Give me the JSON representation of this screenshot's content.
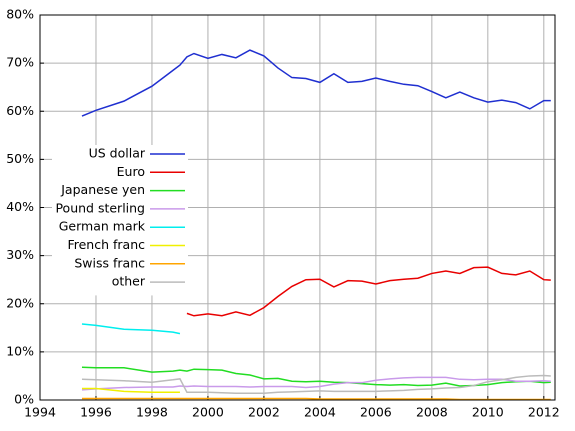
{
  "chart_data": {
    "type": "line",
    "x": [
      1995.5,
      1996,
      1997,
      1998,
      1998.75,
      1999,
      1999.25,
      1999.5,
      2000,
      2000.5,
      2001,
      2001.5,
      2002,
      2002.5,
      2003,
      2003.5,
      2004,
      2004.5,
      2005,
      2005.5,
      2006,
      2006.5,
      2007,
      2007.5,
      2008,
      2008.5,
      2009,
      2009.5,
      2010,
      2010.5,
      2011,
      2011.5,
      2012,
      2012.25
    ],
    "series": [
      {
        "name": "US dollar",
        "color": "#1f2fd0",
        "values": [
          59.0,
          60.2,
          62.1,
          65.2,
          68.5,
          69.6,
          71.3,
          72.0,
          71.0,
          71.8,
          71.1,
          72.7,
          71.5,
          69.0,
          67.0,
          66.8,
          66.0,
          67.8,
          66.0,
          66.2,
          66.9,
          66.2,
          65.6,
          65.3,
          64.1,
          62.8,
          64.0,
          62.8,
          61.9,
          62.3,
          61.8,
          60.5,
          62.2,
          62.2
        ]
      },
      {
        "name": "Euro",
        "color": "#e80000",
        "values": [
          null,
          null,
          null,
          null,
          null,
          null,
          18.0,
          17.5,
          17.9,
          17.5,
          18.3,
          17.6,
          19.2,
          21.5,
          23.6,
          25.0,
          25.1,
          23.5,
          24.8,
          24.7,
          24.1,
          24.8,
          25.1,
          25.3,
          26.3,
          26.8,
          26.3,
          27.5,
          27.6,
          26.3,
          26.0,
          26.8,
          25.0,
          24.9
        ]
      },
      {
        "name": "Japanese yen",
        "color": "#22dd22",
        "values": [
          6.8,
          6.7,
          6.7,
          5.8,
          6.0,
          6.2,
          6.0,
          6.4,
          6.3,
          6.2,
          5.5,
          5.2,
          4.4,
          4.5,
          3.9,
          3.8,
          3.9,
          3.7,
          3.6,
          3.4,
          3.2,
          3.1,
          3.2,
          3.0,
          3.1,
          3.5,
          2.9,
          3.0,
          3.2,
          3.6,
          3.8,
          3.9,
          3.6,
          3.7
        ]
      },
      {
        "name": "Pound sterling",
        "color": "#c99aea",
        "values": [
          2.1,
          2.3,
          2.6,
          2.7,
          2.7,
          2.9,
          2.8,
          2.9,
          2.8,
          2.8,
          2.8,
          2.7,
          2.8,
          2.8,
          2.8,
          2.6,
          2.8,
          3.3,
          3.6,
          3.6,
          4.1,
          4.4,
          4.6,
          4.7,
          4.7,
          4.7,
          4.3,
          4.2,
          4.3,
          4.3,
          3.9,
          3.9,
          4.0,
          3.9
        ]
      },
      {
        "name": "German mark",
        "color": "#00eeee",
        "values": [
          15.8,
          15.5,
          14.7,
          14.5,
          14.1,
          13.8,
          null,
          null,
          null,
          null,
          null,
          null,
          null,
          null,
          null,
          null,
          null,
          null,
          null,
          null,
          null,
          null,
          null,
          null,
          null,
          null,
          null,
          null,
          null,
          null,
          null,
          null,
          null,
          null
        ]
      },
      {
        "name": "French franc",
        "color": "#f0f000",
        "values": [
          2.4,
          2.4,
          1.8,
          1.6,
          1.6,
          1.6,
          null,
          null,
          null,
          null,
          null,
          null,
          null,
          null,
          null,
          null,
          null,
          null,
          null,
          null,
          null,
          null,
          null,
          null,
          null,
          null,
          null,
          null,
          null,
          null,
          null,
          null,
          null,
          null
        ]
      },
      {
        "name": "Swiss franc",
        "color": "#ffa500",
        "values": [
          0.3,
          0.3,
          0.3,
          0.3,
          0.3,
          0.3,
          0.3,
          0.3,
          0.3,
          0.3,
          0.3,
          0.3,
          0.3,
          0.3,
          0.3,
          0.3,
          0.2,
          0.2,
          0.2,
          0.2,
          0.2,
          0.2,
          0.2,
          0.2,
          0.2,
          0.2,
          0.1,
          0.1,
          0.1,
          0.1,
          0.1,
          0.1,
          0.1,
          0.1
        ]
      },
      {
        "name": "other",
        "color": "#bbbbbb",
        "values": [
          4.3,
          4.2,
          4.0,
          3.7,
          4.2,
          4.4,
          1.6,
          1.6,
          1.6,
          1.5,
          1.4,
          1.4,
          1.4,
          1.6,
          1.7,
          1.8,
          1.9,
          1.8,
          1.8,
          1.8,
          1.8,
          1.9,
          2.0,
          2.2,
          2.3,
          2.5,
          2.6,
          3.0,
          3.8,
          4.2,
          4.7,
          5.0,
          5.1,
          5.0
        ]
      }
    ],
    "xlim": [
      1994,
      2012.4
    ],
    "xticks": [
      1994,
      1996,
      1998,
      2000,
      2002,
      2004,
      2006,
      2008,
      2010,
      2012
    ],
    "ylim": [
      0,
      80
    ],
    "yticks": [
      {
        "value": 0,
        "label": "0%"
      },
      {
        "value": 10,
        "label": "10%"
      },
      {
        "value": 20,
        "label": "20%"
      },
      {
        "value": 30,
        "label": "30%"
      },
      {
        "value": 40,
        "label": "40%"
      },
      {
        "value": 50,
        "label": "50%"
      },
      {
        "value": 60,
        "label": "60%"
      },
      {
        "value": 70,
        "label": "70%"
      },
      {
        "value": 80,
        "label": "80%"
      }
    ],
    "grid": true,
    "legend": "left"
  }
}
